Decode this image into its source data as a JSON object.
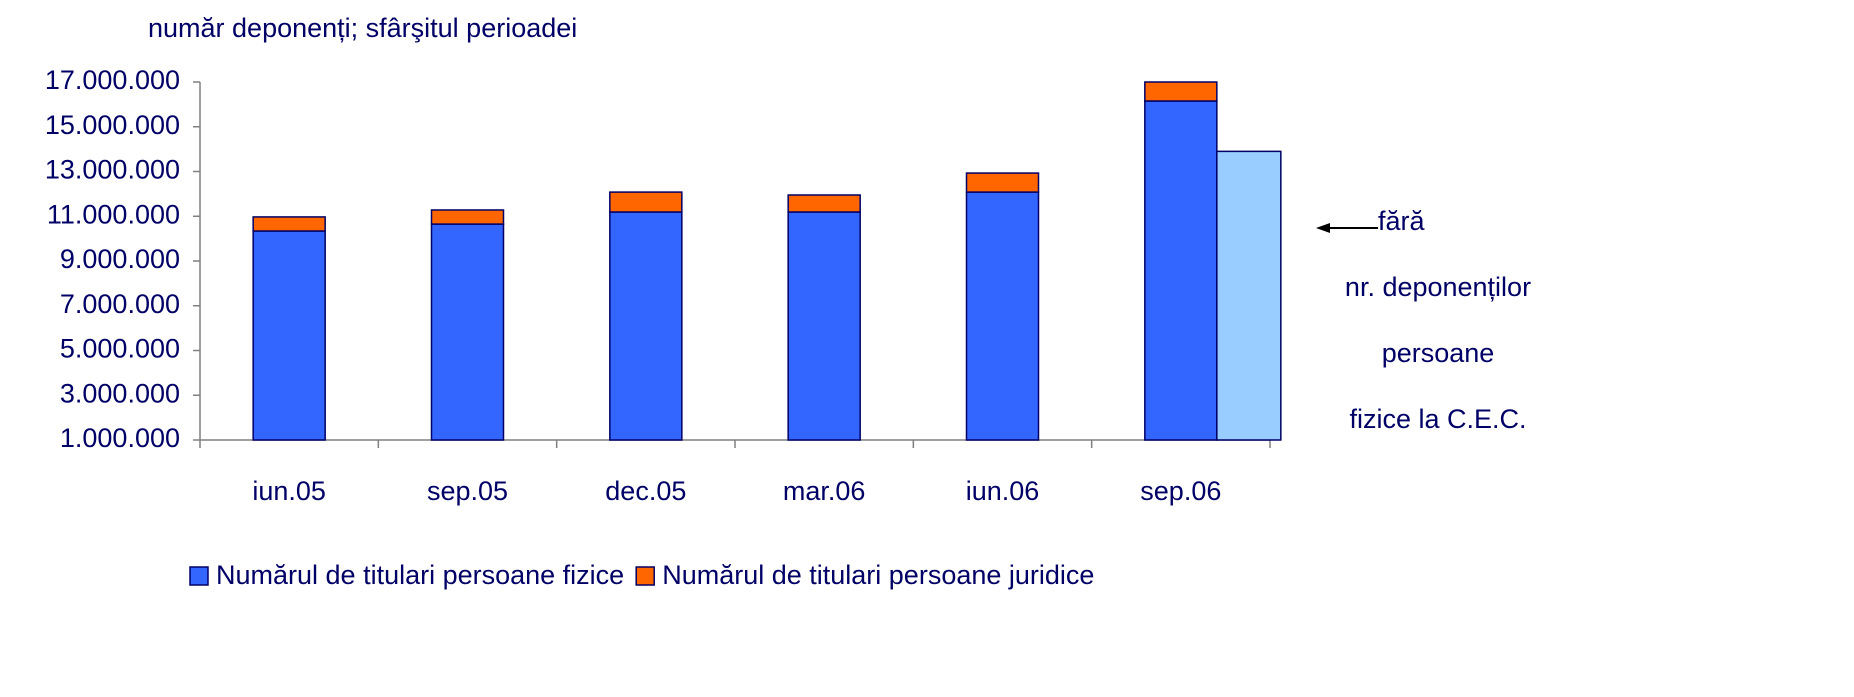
{
  "chart_data": {
    "type": "stacked_bar",
    "title": "număr deponenți; sfârşitul perioadei",
    "categories": [
      "iun.05",
      "sep.05",
      "dec.05",
      "mar.06",
      "iun.06",
      "sep.06"
    ],
    "series": [
      {
        "name": "Numărul de titulari persoane fizice",
        "color": "#3366ff",
        "values": [
          10340000,
          10650000,
          11190000,
          11190000,
          12080000,
          16150000
        ]
      },
      {
        "name": "Numărul de titulari persoane juridice",
        "color": "#ff6600",
        "values": [
          630000,
          630000,
          890000,
          760000,
          850000,
          850000
        ]
      }
    ],
    "extra_bar": {
      "category": "sep.06",
      "value": 13900000,
      "color": "#99ccff"
    },
    "annotation": [
      "fără",
      "nr. deponenților",
      "persoane",
      "fizice la C.E.C."
    ],
    "ylim": [
      1000000,
      17000000
    ],
    "yticks": [
      {
        "value": 1000000,
        "label": "1.000.000"
      },
      {
        "value": 3000000,
        "label": "3.000.000"
      },
      {
        "value": 5000000,
        "label": "5.000.000"
      },
      {
        "value": 7000000,
        "label": "7.000.000"
      },
      {
        "value": 9000000,
        "label": "9.000.000"
      },
      {
        "value": 11000000,
        "label": "11.000.000"
      },
      {
        "value": 13000000,
        "label": "13.000.000"
      },
      {
        "value": 15000000,
        "label": "15.000.000"
      },
      {
        "value": 17000000,
        "label": "17.000.000"
      }
    ],
    "legend": "bottom"
  }
}
